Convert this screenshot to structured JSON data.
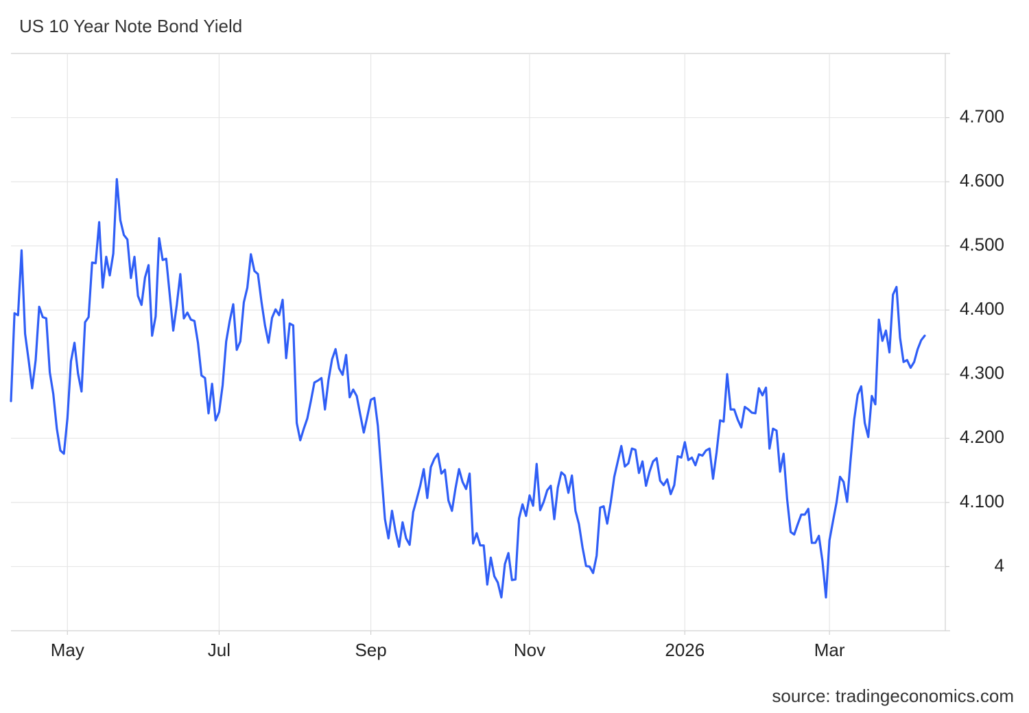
{
  "chart_data": {
    "type": "line",
    "title": "US 10 Year Note Bond Yield",
    "source": "source: tradingeconomics.com",
    "color": "#2f5ef6",
    "grid": true,
    "ylim": [
      3.9,
      4.8
    ],
    "yticks": [
      4,
      {
        "value": 4.1,
        "label": "4.100"
      },
      {
        "value": 4.2,
        "label": "4.200"
      },
      {
        "value": 4.3,
        "label": "4.300"
      },
      {
        "value": 4.4,
        "label": "4.400"
      },
      {
        "value": 4.5,
        "label": "4.500"
      },
      {
        "value": 4.6,
        "label": "4.600"
      },
      {
        "value": 4.7,
        "label": "4.700"
      }
    ],
    "categories": [
      null,
      null,
      null,
      null,
      null,
      null,
      null,
      null,
      null,
      null,
      null,
      null,
      null,
      null,
      null,
      null,
      "May",
      null,
      null,
      null,
      null,
      null,
      null,
      null,
      null,
      null,
      null,
      null,
      null,
      null,
      null,
      null,
      null,
      null,
      null,
      null,
      null,
      null,
      null,
      null,
      null,
      null,
      null,
      null,
      null,
      null,
      null,
      null,
      null,
      null,
      null,
      null,
      null,
      null,
      null,
      null,
      null,
      null,
      null,
      "Jul",
      null,
      null,
      null,
      null,
      null,
      null,
      null,
      null,
      null,
      null,
      null,
      null,
      null,
      null,
      null,
      null,
      null,
      null,
      null,
      null,
      null,
      null,
      null,
      null,
      null,
      null,
      null,
      null,
      null,
      null,
      null,
      null,
      null,
      null,
      null,
      null,
      null,
      null,
      null,
      null,
      null,
      null,
      "Sep",
      null,
      null,
      null,
      null,
      null,
      null,
      null,
      null,
      null,
      null,
      null,
      null,
      null,
      null,
      null,
      null,
      null,
      null,
      null,
      null,
      null,
      null,
      null,
      null,
      null,
      null,
      null,
      null,
      null,
      null,
      null,
      null,
      null,
      null,
      null,
      null,
      null,
      null,
      null,
      null,
      null,
      null,
      null,
      null,
      "Nov",
      null,
      null,
      null,
      null,
      null,
      null,
      null,
      null,
      null,
      null,
      null,
      null,
      null,
      null,
      null,
      null,
      null,
      null,
      null,
      null,
      null,
      null,
      null,
      null,
      null,
      null,
      null,
      null,
      null,
      null,
      null,
      null,
      null,
      null,
      null,
      null,
      null,
      null,
      null,
      null,
      null,
      null,
      null,
      "2026",
      null,
      null,
      null,
      null,
      null,
      null,
      null,
      null,
      null,
      null,
      null,
      null,
      null,
      null,
      null,
      null,
      null,
      null,
      null,
      null,
      null,
      null,
      null,
      null,
      null,
      null,
      null,
      null,
      null,
      null,
      null,
      null,
      null,
      null,
      null,
      null,
      null,
      null,
      null,
      null,
      "Mar",
      null,
      null,
      null,
      null,
      null,
      null,
      null,
      null,
      null,
      null,
      null,
      null,
      null,
      null,
      null,
      null,
      null,
      null,
      null,
      null,
      null,
      null,
      null,
      null,
      null,
      null,
      null
    ],
    "values": [
      4.258,
      4.395,
      4.392,
      4.493,
      4.363,
      4.322,
      4.278,
      4.322,
      4.405,
      4.389,
      4.387,
      4.303,
      4.269,
      4.215,
      4.181,
      4.176,
      4.231,
      4.32,
      4.349,
      4.301,
      4.273,
      4.381,
      4.389,
      4.474,
      4.473,
      4.537,
      4.435,
      4.483,
      4.454,
      4.488,
      4.604,
      4.54,
      4.517,
      4.51,
      4.45,
      4.483,
      4.422,
      4.408,
      4.451,
      4.47,
      4.36,
      4.39,
      4.512,
      4.478,
      4.48,
      4.424,
      4.368,
      4.408,
      4.456,
      4.387,
      4.396,
      4.385,
      4.383,
      4.349,
      4.298,
      4.294,
      4.239,
      4.285,
      4.228,
      4.241,
      4.283,
      4.351,
      4.383,
      4.409,
      4.338,
      4.351,
      4.412,
      4.435,
      4.487,
      4.461,
      4.456,
      4.413,
      4.376,
      4.349,
      4.388,
      4.401,
      4.392,
      4.416,
      4.325,
      4.379,
      4.376,
      4.224,
      4.197,
      4.215,
      4.231,
      4.258,
      4.287,
      4.29,
      4.294,
      4.245,
      4.291,
      4.323,
      4.339,
      4.309,
      4.299,
      4.33,
      4.264,
      4.276,
      4.266,
      4.237,
      4.209,
      4.234,
      4.26,
      4.263,
      4.219,
      4.146,
      4.074,
      4.044,
      4.087,
      4.055,
      4.031,
      4.069,
      4.044,
      4.034,
      4.085,
      4.105,
      4.126,
      4.152,
      4.107,
      4.155,
      4.168,
      4.176,
      4.145,
      4.151,
      4.103,
      4.087,
      4.122,
      4.152,
      4.132,
      4.121,
      4.145,
      4.036,
      4.052,
      4.033,
      4.033,
      3.972,
      4.014,
      3.985,
      3.975,
      3.952,
      4.004,
      4.021,
      3.979,
      3.98,
      4.075,
      4.097,
      4.079,
      4.111,
      4.095,
      4.16,
      4.088,
      4.101,
      4.119,
      4.126,
      4.074,
      4.123,
      4.147,
      4.142,
      4.115,
      4.142,
      4.087,
      4.066,
      4.03,
      4.001,
      4.0,
      3.99,
      4.017,
      4.092,
      4.094,
      4.067,
      4.1,
      4.14,
      4.164,
      4.188,
      4.156,
      4.161,
      4.184,
      4.182,
      4.146,
      4.164,
      4.126,
      4.148,
      4.164,
      4.169,
      4.134,
      4.127,
      4.136,
      4.113,
      4.127,
      4.172,
      4.17,
      4.194,
      4.166,
      4.17,
      4.158,
      4.175,
      4.173,
      4.181,
      4.184,
      4.137,
      4.178,
      4.228,
      4.226,
      4.3,
      4.245,
      4.245,
      4.229,
      4.217,
      4.249,
      4.245,
      4.24,
      4.239,
      4.278,
      4.267,
      4.279,
      4.184,
      4.215,
      4.212,
      4.148,
      4.176,
      4.105,
      4.054,
      4.05,
      4.066,
      4.081,
      4.081,
      4.09,
      4.037,
      4.037,
      4.048,
      4.009,
      3.952,
      4.041,
      4.071,
      4.1,
      4.14,
      4.132,
      4.101,
      4.167,
      4.229,
      4.268,
      4.281,
      4.224,
      4.202,
      4.266,
      4.253,
      4.385,
      4.352,
      4.368,
      4.334,
      4.424,
      4.436,
      4.357,
      4.319,
      4.322,
      4.31,
      4.319,
      4.339,
      4.353,
      4.36
    ]
  }
}
